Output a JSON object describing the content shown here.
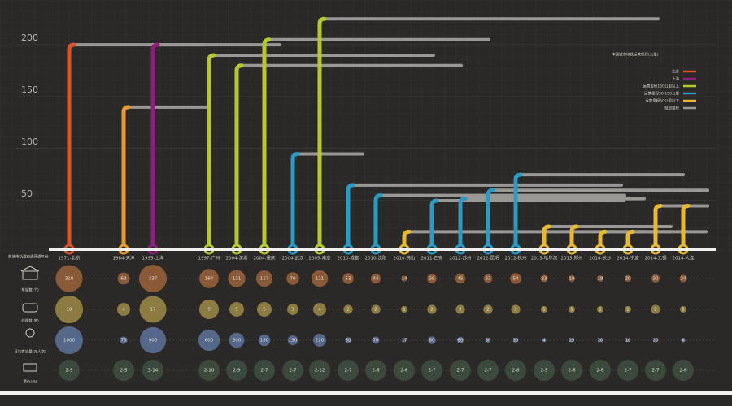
{
  "chart_data": {
    "type": "metro",
    "title": "中国城市地铁运营里程(公里)",
    "categories": [
      "1971-北京",
      "1984-天津",
      "1995-上海",
      "1997-广州",
      "2004-深圳",
      "2004-重庆",
      "2004-武汉",
      "2005-南京",
      "2010-成都",
      "2010-沈阳",
      "2010-佛山",
      "2011-西安",
      "2012-苏州",
      "2012-昆明",
      "2012-杭州",
      "2013-哈尔滨",
      "2013-郑州",
      "2014-长沙",
      "2014-宁波",
      "2014-无锡",
      "2014-大连"
    ],
    "values": [
      200,
      140,
      200,
      190,
      180,
      205,
      95,
      225,
      65,
      55,
      20,
      50,
      52,
      60,
      75,
      25,
      25,
      20,
      20,
      45,
      45
    ],
    "colors": [
      "#d9532b",
      "#e89a30",
      "#8e1f7e",
      "#b7c730",
      "#b7c730",
      "#b7c730",
      "#2a9bc4",
      "#b7c730",
      "#2a9bc4",
      "#2a9bc4",
      "#e8b830",
      "#2a9bc4",
      "#2a9bc4",
      "#2a9bc4",
      "#2a9bc4",
      "#e8b830",
      "#e8b830",
      "#e8b830",
      "#e8b830",
      "#e8b830",
      "#e8b830"
    ],
    "ylim": [
      0,
      240
    ],
    "yticks": [
      50,
      100,
      150,
      200
    ],
    "grid": true,
    "legend": [
      {
        "name": "北京",
        "color": "#d9532b"
      },
      {
        "name": "上海",
        "color": "#8e1f7e"
      },
      {
        "name": "运营里程150公里以上",
        "color": "#b7c730"
      },
      {
        "name": "运营里程50-150公里",
        "color": "#2a9bc4"
      },
      {
        "name": "运营里程50公里以下",
        "color": "#e8b830"
      },
      {
        "name": "规划里程",
        "color": "#9a9894"
      }
    ],
    "table": {
      "header": "各城市轨道交通开通年份",
      "rows": [
        {
          "label": "车站数(个)",
          "color": "#8a5a38",
          "values": [
            318,
            63,
            337,
            164,
            131,
            117,
            70,
            121,
            53,
            44,
            14,
            39,
            45,
            33,
            54,
            23,
            19,
            18,
            20,
            30,
            24
          ]
        },
        {
          "label": "线路数(条)",
          "color": "#8c7c42",
          "values": [
            18,
            4,
            17,
            9,
            5,
            5,
            3,
            4,
            2,
            2,
            1,
            2,
            2,
            2,
            2,
            1,
            1,
            1,
            1,
            2,
            1
          ]
        },
        {
          "label": "日均客流量(万人次)",
          "color": "#56688a",
          "values": [
            1000,
            75,
            900,
            600,
            300,
            180,
            130,
            220,
            50,
            70,
            17,
            80,
            60,
            30,
            30,
            4,
            25,
            20,
            10,
            20,
            6
          ]
        },
        {
          "label": "票价(元)",
          "color": "#3c4a3e",
          "values": [
            "2-9",
            "2-5",
            "3-14",
            "2-10",
            "2-9",
            "2-7",
            "2-7",
            "2-12",
            "2-7",
            "2-6",
            "2-6",
            "2-7",
            "2-7",
            "2-7",
            "2-8",
            "2-5",
            "2-6",
            "2-6",
            "2-7",
            "2-7",
            "2-6"
          ]
        }
      ]
    }
  }
}
